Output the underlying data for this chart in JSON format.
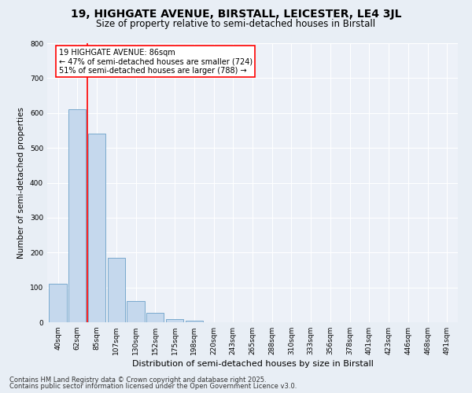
{
  "title": "19, HIGHGATE AVENUE, BIRSTALL, LEICESTER, LE4 3JL",
  "subtitle": "Size of property relative to semi-detached houses in Birstall",
  "xlabel": "Distribution of semi-detached houses by size in Birstall",
  "ylabel": "Number of semi-detached properties",
  "categories": [
    "40sqm",
    "62sqm",
    "85sqm",
    "107sqm",
    "130sqm",
    "152sqm",
    "175sqm",
    "198sqm",
    "220sqm",
    "243sqm",
    "265sqm",
    "288sqm",
    "310sqm",
    "333sqm",
    "356sqm",
    "378sqm",
    "401sqm",
    "423sqm",
    "446sqm",
    "468sqm",
    "491sqm"
  ],
  "values": [
    110,
    610,
    540,
    185,
    60,
    28,
    10,
    5,
    1,
    0,
    0,
    0,
    0,
    0,
    0,
    0,
    0,
    0,
    0,
    0,
    0
  ],
  "bar_color": "#c5d8ed",
  "bar_edge_color": "#6a9fc8",
  "vline_x": 1.5,
  "vline_color": "red",
  "annotation_text": "19 HIGHGATE AVENUE: 86sqm\n← 47% of semi-detached houses are smaller (724)\n51% of semi-detached houses are larger (788) →",
  "annotation_box_color": "white",
  "annotation_box_edge_color": "red",
  "ylim": [
    0,
    800
  ],
  "yticks": [
    0,
    100,
    200,
    300,
    400,
    500,
    600,
    700,
    800
  ],
  "footnote_line1": "Contains HM Land Registry data © Crown copyright and database right 2025.",
  "footnote_line2": "Contains public sector information licensed under the Open Government Licence v3.0.",
  "bg_color": "#e8eef5",
  "plot_bg_color": "#edf1f8",
  "title_fontsize": 10,
  "subtitle_fontsize": 8.5,
  "label_fontsize": 7.5,
  "tick_fontsize": 6.5,
  "footnote_fontsize": 6.0,
  "annotation_fontsize": 7.0
}
